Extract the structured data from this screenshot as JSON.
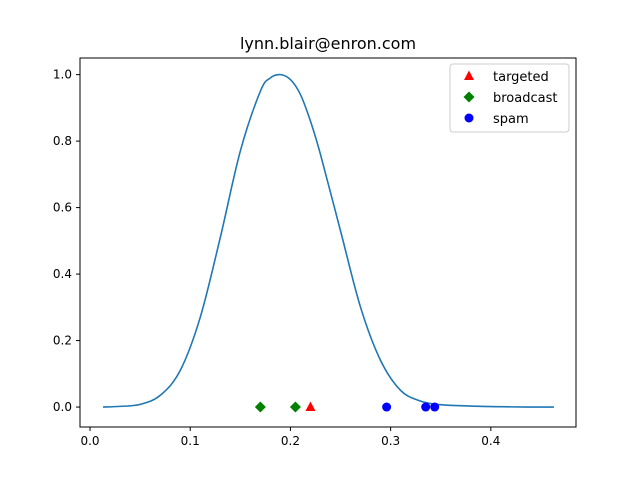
{
  "chart_data": {
    "type": "line",
    "title": "lynn.blair@enron.com",
    "xlabel": "",
    "ylabel": "",
    "xlim": [
      -0.01,
      0.485
    ],
    "ylim": [
      -0.06,
      1.05
    ],
    "xticks": [
      0.0,
      0.1,
      0.2,
      0.3,
      0.4
    ],
    "xtick_labels": [
      "0.0",
      "0.1",
      "0.2",
      "0.3",
      "0.4"
    ],
    "yticks": [
      0.0,
      0.2,
      0.4,
      0.6,
      0.8,
      1.0
    ],
    "ytick_labels": [
      "0.0",
      "0.2",
      "0.4",
      "0.6",
      "0.8",
      "1.0"
    ],
    "grid": false,
    "legend_position": "top-right",
    "curve": {
      "color": "#1f77b4",
      "x": [
        0.013,
        0.03,
        0.05,
        0.07,
        0.09,
        0.11,
        0.13,
        0.15,
        0.17,
        0.18,
        0.19,
        0.2,
        0.21,
        0.22,
        0.23,
        0.25,
        0.27,
        0.29,
        0.31,
        0.33,
        0.35,
        0.38,
        0.41,
        0.44,
        0.463
      ],
      "y": [
        0.0,
        0.002,
        0.008,
        0.035,
        0.11,
        0.27,
        0.51,
        0.77,
        0.95,
        0.99,
        1.0,
        0.985,
        0.94,
        0.86,
        0.76,
        0.53,
        0.3,
        0.14,
        0.05,
        0.018,
        0.007,
        0.003,
        0.001,
        0.0,
        0.0
      ]
    },
    "series": [
      {
        "name": "targeted",
        "marker": "triangle",
        "color": "#ff0000",
        "x": [
          0.22
        ],
        "y": [
          0.0
        ]
      },
      {
        "name": "broadcast",
        "marker": "diamond",
        "color": "#008000",
        "x": [
          0.17,
          0.205
        ],
        "y": [
          0.0,
          0.0
        ]
      },
      {
        "name": "spam",
        "marker": "circle",
        "color": "#0000ff",
        "x": [
          0.296,
          0.335,
          0.344
        ],
        "y": [
          0.0,
          0.0,
          0.0
        ]
      }
    ]
  }
}
